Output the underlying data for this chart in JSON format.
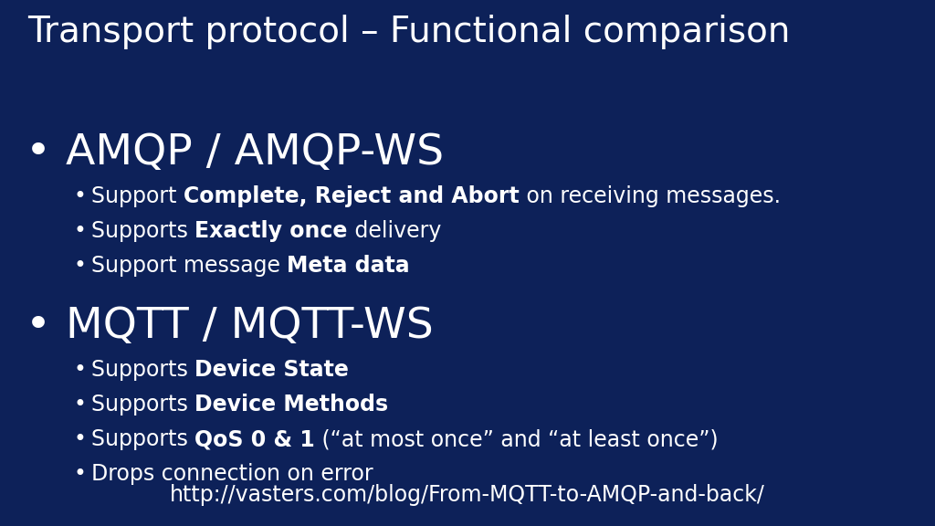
{
  "title": "Transport protocol – Functional comparison",
  "background_color": "#0d2159",
  "text_color": "#ffffff",
  "title_fontsize": 28,
  "section1_header": "AMQP / AMQP-WS",
  "section1_header_fontsize": 34,
  "section1_bullets": [
    [
      "Support ",
      "Complete, Reject and Abort",
      " on receiving messages."
    ],
    [
      "Supports ",
      "Exactly once",
      " delivery"
    ],
    [
      "Support message ",
      "Meta data",
      ""
    ]
  ],
  "section2_header": "MQTT / MQTT-WS",
  "section2_header_fontsize": 34,
  "section2_bullets": [
    [
      "Supports ",
      "Device State",
      ""
    ],
    [
      "Supports ",
      "Device Methods",
      ""
    ],
    [
      "Supports ",
      "QoS 0 & 1",
      " (“at most once” and “at least once”)"
    ],
    [
      "Drops connection on error",
      "",
      ""
    ]
  ],
  "footer": "http://vasters.com/blog/From-MQTT-to-AMQP-and-back/",
  "footer_fontsize": 17,
  "sub_bullet_fontsize": 17
}
